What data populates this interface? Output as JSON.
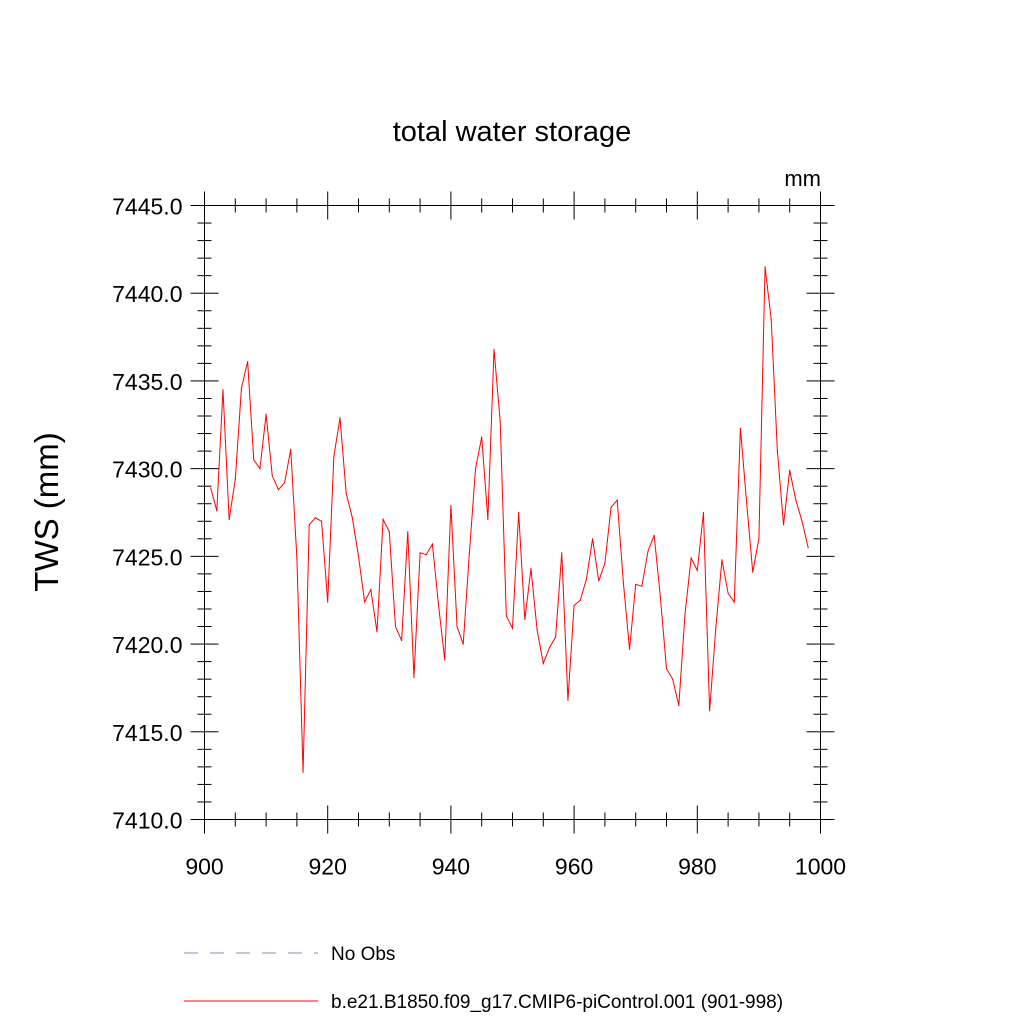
{
  "chart_data": {
    "type": "line",
    "title": "total water storage",
    "units_label": "mm",
    "xlabel": "",
    "ylabel": "TWS  (mm)",
    "xlim": [
      900,
      1000
    ],
    "ylim": [
      7410.0,
      7445.0
    ],
    "x_ticks": [
      900,
      920,
      940,
      960,
      980,
      1000
    ],
    "x_tick_labels": [
      "900",
      "920",
      "940",
      "960",
      "980",
      "1000"
    ],
    "y_ticks": [
      7410.0,
      7415.0,
      7420.0,
      7425.0,
      7430.0,
      7435.0,
      7440.0,
      7445.0
    ],
    "y_tick_labels": [
      "7410.0",
      "7415.0",
      "7420.0",
      "7425.0",
      "7430.0",
      "7435.0",
      "7440.0",
      "7445.0"
    ],
    "grid": false,
    "legend_position": "bottom-left",
    "series": [
      {
        "name": "b.e21.B1850.f09_g17.CMIP6-piControl.001 (901-998)",
        "color": "#ff0000",
        "style": "solid",
        "x": [
          901,
          902,
          903,
          904,
          905,
          906,
          907,
          908,
          909,
          910,
          911,
          912,
          913,
          914,
          915,
          916,
          917,
          918,
          919,
          920,
          921,
          922,
          923,
          924,
          925,
          926,
          927,
          928,
          929,
          930,
          931,
          932,
          933,
          934,
          935,
          936,
          937,
          938,
          939,
          940,
          941,
          942,
          943,
          944,
          945,
          946,
          947,
          948,
          949,
          950,
          951,
          952,
          953,
          954,
          955,
          956,
          957,
          958,
          959,
          960,
          961,
          962,
          963,
          964,
          965,
          966,
          967,
          968,
          969,
          970,
          971,
          972,
          973,
          974,
          975,
          976,
          977,
          978,
          979,
          980,
          981,
          982,
          983,
          984,
          985,
          986,
          987,
          988,
          989,
          990,
          991,
          992,
          993,
          994,
          995,
          996,
          997,
          998
        ],
        "y": [
          7428.9,
          7427.6,
          7434.5,
          7427.1,
          7429.4,
          7434.6,
          7436.1,
          7430.5,
          7430.0,
          7433.1,
          7429.6,
          7428.8,
          7429.2,
          7431.1,
          7424.9,
          7412.7,
          7426.8,
          7427.2,
          7427.0,
          7422.4,
          7430.7,
          7432.9,
          7428.6,
          7427.2,
          7425.0,
          7422.4,
          7423.1,
          7420.7,
          7427.1,
          7426.4,
          7421.0,
          7420.2,
          7426.4,
          7418.1,
          7425.2,
          7425.1,
          7425.7,
          7422.2,
          7419.1,
          7427.9,
          7421.0,
          7420.0,
          7425.2,
          7430.0,
          7431.8,
          7427.1,
          7436.8,
          7432.7,
          7421.6,
          7420.9,
          7427.5,
          7421.4,
          7424.3,
          7420.8,
          7418.9,
          7419.8,
          7420.4,
          7425.2,
          7416.8,
          7422.2,
          7422.5,
          7423.7,
          7426.0,
          7423.6,
          7424.6,
          7427.8,
          7428.2,
          7423.5,
          7419.7,
          7423.4,
          7423.3,
          7425.3,
          7426.2,
          7422.7,
          7418.6,
          7418.0,
          7416.5,
          7421.7,
          7424.9,
          7424.2,
          7427.5,
          7416.2,
          7420.9,
          7424.8,
          7422.9,
          7422.4,
          7432.3,
          7428.1,
          7424.1,
          7426.0,
          7441.5,
          7438.5,
          7431.0,
          7426.8,
          7429.9,
          7428.2,
          7427.0,
          7425.5
        ]
      },
      {
        "name": "No Obs",
        "color": "#8888cc",
        "style": "dashed",
        "x": [],
        "y": []
      }
    ]
  }
}
